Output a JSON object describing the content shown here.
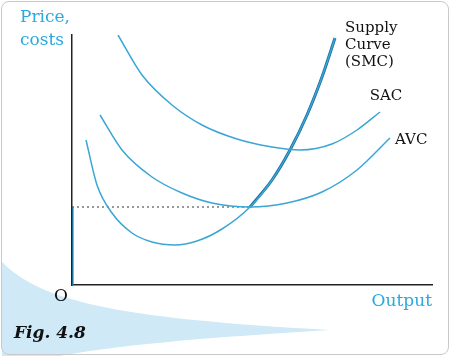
{
  "chart_data": {
    "type": "line",
    "figure_label": "Fig. 4.8",
    "x_label": "Output",
    "y_label": "Price, costs",
    "origin_label": "O",
    "xlim": [
      0,
      360
    ],
    "ylim": [
      0,
      250
    ],
    "tick_labels": false,
    "grid": false,
    "series": [
      {
        "name": "Supply Curve (SMC)",
        "color": "#3aa6d6",
        "marker": "none",
        "line_style": "solid",
        "x": [
          14,
          25,
          40,
          60,
          80,
          103,
          125,
          150,
          178,
          200,
          218,
          235,
          250,
          263
        ],
        "values": [
          145,
          100,
          72,
          52,
          43,
          40,
          44,
          56,
          78,
          105,
          135,
          170,
          208,
          247
        ]
      },
      {
        "name": "SAC",
        "color": "#3aa6d6",
        "marker": "none",
        "line_style": "solid",
        "x": [
          46,
          70,
          100,
          130,
          165,
          200,
          228,
          260,
          285,
          308
        ],
        "values": [
          250,
          210,
          180,
          160,
          146,
          138,
          135,
          141,
          155,
          173
        ]
      },
      {
        "name": "AVC",
        "color": "#3aa6d6",
        "marker": "none",
        "line_style": "solid",
        "x": [
          28,
          50,
          80,
          110,
          140,
          178,
          215,
          250,
          285,
          318
        ],
        "values": [
          170,
          135,
          108,
          92,
          82,
          78,
          82,
          93,
          115,
          147
        ]
      }
    ],
    "supply_curve": {
      "color": "#1b6d9c",
      "line_style": "thick",
      "x": [
        0,
        0,
        0,
        178,
        200,
        218,
        235,
        250,
        263
      ],
      "values": [
        0,
        78,
        null,
        78,
        105,
        135,
        170,
        208,
        247
      ]
    },
    "reference_line": {
      "y": 78,
      "x": [
        0,
        178
      ],
      "line_style": "dotted",
      "color": "#333333"
    }
  }
}
